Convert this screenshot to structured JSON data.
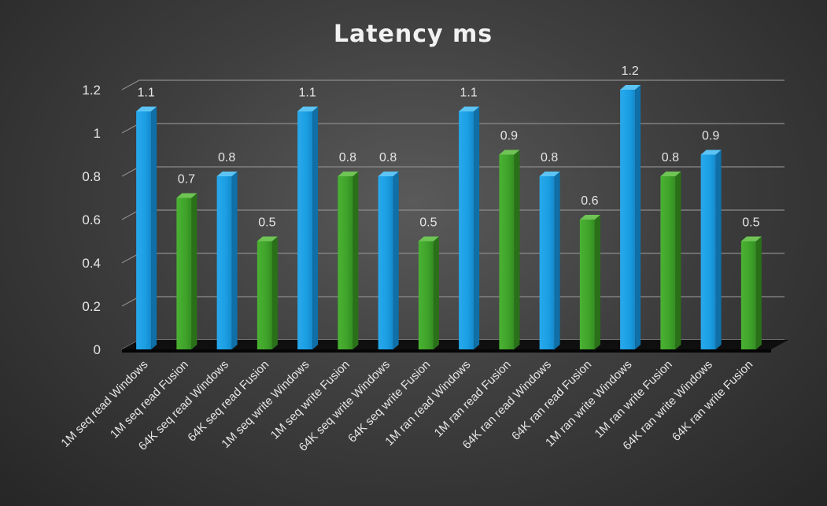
{
  "chart_data": {
    "type": "bar",
    "title": "Latency ms",
    "xlabel": "",
    "ylabel": "",
    "ylim": [
      0,
      1.2
    ],
    "yticks": [
      0,
      0.2,
      0.4,
      0.6,
      0.8,
      1,
      1.2
    ],
    "ytick_labels": [
      "0",
      "0.2",
      "0.4",
      "0.6",
      "0.8",
      "1",
      "1.2"
    ],
    "grid": true,
    "legend": "none",
    "categories": [
      "1M seq read Windows",
      "1M seq read Fusion",
      "64K seq read Windows",
      "64K seq read Fusion",
      "1M seq write Windows",
      "1M seq write Fusion",
      "64K seq write Windows",
      "64K seq write Fusion",
      "1M ran read Windows",
      "1M ran read Fusion",
      "64K ran read Windows",
      "64K ran read Fusion",
      "1M ran write Windows",
      "1M ran write Fusion",
      "64K ran write Windows",
      "64K ran write Fusion"
    ],
    "values": [
      1.1,
      0.7,
      0.8,
      0.5,
      1.1,
      0.8,
      0.8,
      0.5,
      1.1,
      0.9,
      0.8,
      0.6,
      1.2,
      0.8,
      0.9,
      0.5
    ],
    "data_labels": [
      "1.1",
      "0.7",
      "0.8",
      "0.5",
      "1.1",
      "0.8",
      "0.8",
      "0.5",
      "1.1",
      "0.9",
      "0.8",
      "0.6",
      "1.2",
      "0.8",
      "0.9",
      "0.5"
    ],
    "bar_colors": {
      "Windows": "#1ea0e4",
      "Fusion": "#3fa32a"
    }
  }
}
